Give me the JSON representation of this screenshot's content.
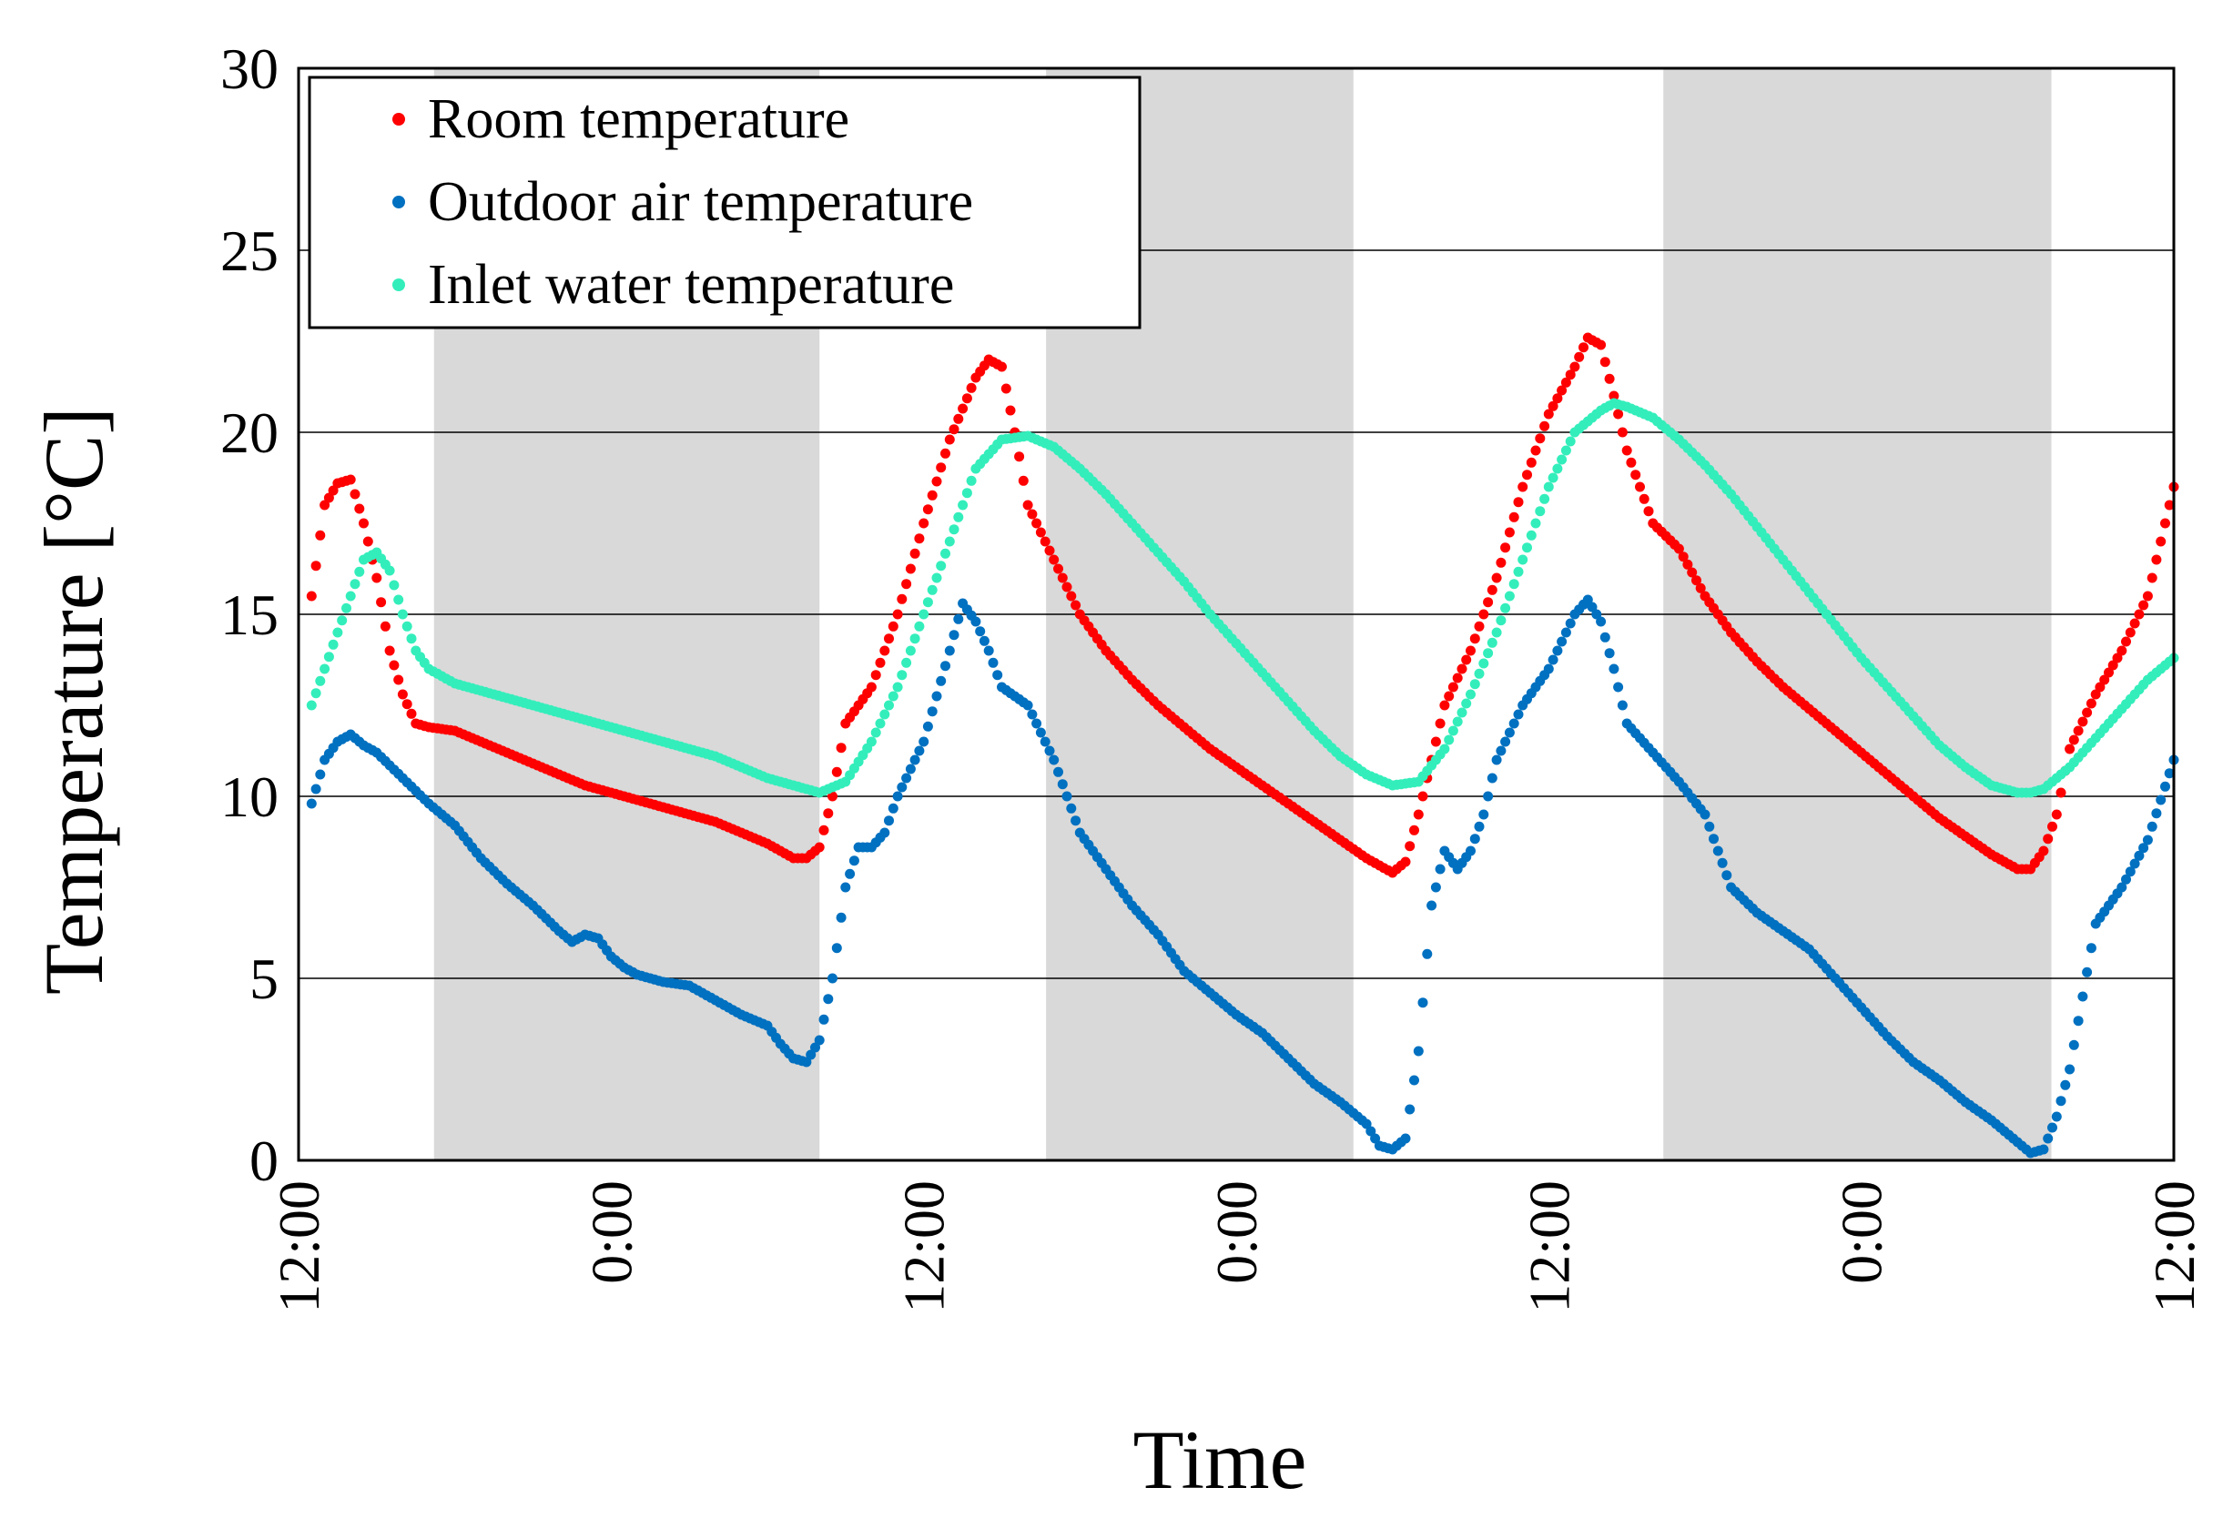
{
  "chart_data": {
    "type": "scatter",
    "title": "",
    "xlabel": "Time",
    "ylabel": "Temperature [°C]",
    "ylim": [
      0,
      30
    ],
    "yticks": [
      0,
      5,
      10,
      15,
      20,
      25,
      30
    ],
    "xlim_hours": [
      12,
      84
    ],
    "xticks": [
      {
        "h": 12,
        "label": "12:00"
      },
      {
        "h": 24,
        "label": "0:00"
      },
      {
        "h": 36,
        "label": "12:00"
      },
      {
        "h": 48,
        "label": "0:00"
      },
      {
        "h": 60,
        "label": "12:00"
      },
      {
        "h": 72,
        "label": "0:00"
      },
      {
        "h": 84,
        "label": "12:00"
      }
    ],
    "gridlines": "horizontal",
    "shaded_night_periods_hours": [
      [
        17.2,
        32
      ],
      [
        40.7,
        52.5
      ],
      [
        64.4,
        79.3
      ]
    ],
    "legend_position": "top-left",
    "series": [
      {
        "name": "Room temperature",
        "color": "#ff0000",
        "points": [
          [
            12.5,
            15.5
          ],
          [
            13,
            18
          ],
          [
            13.5,
            18.6
          ],
          [
            14,
            18.7
          ],
          [
            14.5,
            17.5
          ],
          [
            15,
            16
          ],
          [
            15.5,
            14
          ],
          [
            16,
            12.8
          ],
          [
            16.5,
            12
          ],
          [
            17,
            11.9
          ],
          [
            18,
            11.8
          ],
          [
            19,
            11.5
          ],
          [
            20,
            11.2
          ],
          [
            21,
            10.9
          ],
          [
            22,
            10.6
          ],
          [
            23,
            10.3
          ],
          [
            24,
            10.1
          ],
          [
            25,
            9.9
          ],
          [
            26,
            9.7
          ],
          [
            27,
            9.5
          ],
          [
            28,
            9.3
          ],
          [
            29,
            9.0
          ],
          [
            30,
            8.7
          ],
          [
            31,
            8.3
          ],
          [
            31.5,
            8.3
          ],
          [
            32,
            8.6
          ],
          [
            32.5,
            10
          ],
          [
            33,
            12
          ],
          [
            34,
            13
          ],
          [
            35,
            15
          ],
          [
            36,
            17.5
          ],
          [
            37,
            19.8
          ],
          [
            38,
            21.5
          ],
          [
            38.5,
            22
          ],
          [
            39,
            21.8
          ],
          [
            39.5,
            20
          ],
          [
            40,
            18
          ],
          [
            41,
            16.5
          ],
          [
            42,
            15
          ],
          [
            43,
            14
          ],
          [
            44,
            13.2
          ],
          [
            45,
            12.5
          ],
          [
            46,
            11.9
          ],
          [
            47,
            11.3
          ],
          [
            48,
            10.8
          ],
          [
            49,
            10.3
          ],
          [
            50,
            9.8
          ],
          [
            51,
            9.3
          ],
          [
            52,
            8.8
          ],
          [
            53,
            8.3
          ],
          [
            54,
            7.9
          ],
          [
            54.5,
            8.2
          ],
          [
            55,
            9.5
          ],
          [
            56,
            12.5
          ],
          [
            57,
            14
          ],
          [
            58,
            16
          ],
          [
            59,
            18.5
          ],
          [
            60,
            20.5
          ],
          [
            61,
            21.8
          ],
          [
            61.5,
            22.6
          ],
          [
            62,
            22.4
          ],
          [
            62.5,
            21
          ],
          [
            63,
            19.5
          ],
          [
            64,
            17.5
          ],
          [
            65,
            16.8
          ],
          [
            66,
            15.5
          ],
          [
            67,
            14.5
          ],
          [
            68,
            13.7
          ],
          [
            69,
            13
          ],
          [
            70,
            12.4
          ],
          [
            71,
            11.8
          ],
          [
            72,
            11.2
          ],
          [
            73,
            10.6
          ],
          [
            74,
            10
          ],
          [
            75,
            9.4
          ],
          [
            76,
            8.9
          ],
          [
            77,
            8.4
          ],
          [
            78,
            8
          ],
          [
            78.5,
            8
          ],
          [
            79,
            8.5
          ],
          [
            79.5,
            9.5
          ],
          [
            80,
            11.3
          ],
          [
            81,
            12.8
          ],
          [
            82,
            14
          ],
          [
            83,
            15.5
          ],
          [
            83.5,
            17
          ],
          [
            84,
            18.5
          ]
        ]
      },
      {
        "name": "Outdoor air temperature",
        "color": "#0070c0",
        "points": [
          [
            12.5,
            9.8
          ],
          [
            13,
            11
          ],
          [
            13.5,
            11.5
          ],
          [
            14,
            11.7
          ],
          [
            14.5,
            11.4
          ],
          [
            15,
            11.2
          ],
          [
            16,
            10.5
          ],
          [
            17,
            9.8
          ],
          [
            18,
            9.2
          ],
          [
            19,
            8.3
          ],
          [
            20,
            7.6
          ],
          [
            21,
            7
          ],
          [
            22,
            6.3
          ],
          [
            22.5,
            6
          ],
          [
            23,
            6.2
          ],
          [
            23.5,
            6.1
          ],
          [
            24,
            5.6
          ],
          [
            24.5,
            5.3
          ],
          [
            25,
            5.1
          ],
          [
            26,
            4.9
          ],
          [
            27,
            4.8
          ],
          [
            28,
            4.4
          ],
          [
            29,
            4
          ],
          [
            30,
            3.7
          ],
          [
            30.5,
            3.2
          ],
          [
            31,
            2.8
          ],
          [
            31.5,
            2.7
          ],
          [
            32,
            3.3
          ],
          [
            32.5,
            5
          ],
          [
            33,
            7.5
          ],
          [
            33.5,
            8.6
          ],
          [
            34,
            8.6
          ],
          [
            34.5,
            9
          ],
          [
            35,
            10
          ],
          [
            36,
            11.5
          ],
          [
            37,
            14
          ],
          [
            37.5,
            15.3
          ],
          [
            38,
            14.8
          ],
          [
            38.5,
            14
          ],
          [
            39,
            13
          ],
          [
            40,
            12.5
          ],
          [
            41,
            11
          ],
          [
            42,
            9
          ],
          [
            43,
            8
          ],
          [
            44,
            7
          ],
          [
            45,
            6.2
          ],
          [
            46,
            5.2
          ],
          [
            47,
            4.6
          ],
          [
            48,
            4
          ],
          [
            49,
            3.5
          ],
          [
            50,
            2.8
          ],
          [
            51,
            2.1
          ],
          [
            52,
            1.6
          ],
          [
            53,
            1
          ],
          [
            53.5,
            0.4
          ],
          [
            54,
            0.3
          ],
          [
            54.5,
            0.6
          ],
          [
            55,
            3
          ],
          [
            55.5,
            7
          ],
          [
            56,
            8.5
          ],
          [
            56.5,
            8
          ],
          [
            57,
            8.5
          ],
          [
            57.5,
            9.5
          ],
          [
            58,
            11
          ],
          [
            59,
            12.5
          ],
          [
            60,
            13.5
          ],
          [
            61,
            15
          ],
          [
            61.5,
            15.4
          ],
          [
            62,
            14.8
          ],
          [
            62.5,
            13.5
          ],
          [
            63,
            12
          ],
          [
            64,
            11.2
          ],
          [
            65,
            10.4
          ],
          [
            66,
            9.5
          ],
          [
            67,
            7.5
          ],
          [
            68,
            6.8
          ],
          [
            69,
            6.3
          ],
          [
            70,
            5.8
          ],
          [
            71,
            5
          ],
          [
            72,
            4.2
          ],
          [
            73,
            3.4
          ],
          [
            74,
            2.7
          ],
          [
            75,
            2.2
          ],
          [
            76,
            1.6
          ],
          [
            77,
            1.1
          ],
          [
            78,
            0.5
          ],
          [
            78.5,
            0.2
          ],
          [
            79,
            0.3
          ],
          [
            79.5,
            1.2
          ],
          [
            80,
            2.5
          ],
          [
            80.5,
            4.5
          ],
          [
            81,
            6.5
          ],
          [
            82,
            7.5
          ],
          [
            83,
            8.8
          ],
          [
            84,
            11
          ]
        ]
      },
      {
        "name": "Inlet water temperature",
        "color": "#33eebb",
        "points": [
          [
            12.5,
            12.5
          ],
          [
            13,
            13.5
          ],
          [
            13.5,
            14.5
          ],
          [
            14,
            15.5
          ],
          [
            14.5,
            16.5
          ],
          [
            15,
            16.7
          ],
          [
            15.5,
            16.2
          ],
          [
            16,
            15
          ],
          [
            16.5,
            14
          ],
          [
            17,
            13.5
          ],
          [
            18,
            13.1
          ],
          [
            19,
            12.9
          ],
          [
            20,
            12.7
          ],
          [
            21,
            12.5
          ],
          [
            22,
            12.3
          ],
          [
            23,
            12.1
          ],
          [
            24,
            11.9
          ],
          [
            25,
            11.7
          ],
          [
            26,
            11.5
          ],
          [
            27,
            11.3
          ],
          [
            28,
            11.1
          ],
          [
            29,
            10.8
          ],
          [
            30,
            10.5
          ],
          [
            31,
            10.3
          ],
          [
            32,
            10.1
          ],
          [
            33,
            10.4
          ],
          [
            34,
            11.5
          ],
          [
            35,
            13
          ],
          [
            36,
            15
          ],
          [
            37,
            17
          ],
          [
            38,
            19
          ],
          [
            39,
            19.8
          ],
          [
            40,
            19.9
          ],
          [
            41,
            19.6
          ],
          [
            42,
            19
          ],
          [
            43,
            18.3
          ],
          [
            44,
            17.5
          ],
          [
            45,
            16.7
          ],
          [
            46,
            15.9
          ],
          [
            47,
            15
          ],
          [
            48,
            14.2
          ],
          [
            49,
            13.4
          ],
          [
            50,
            12.6
          ],
          [
            51,
            11.8
          ],
          [
            52,
            11.1
          ],
          [
            53,
            10.6
          ],
          [
            54,
            10.3
          ],
          [
            55,
            10.4
          ],
          [
            56,
            11.3
          ],
          [
            57,
            12.8
          ],
          [
            58,
            14.5
          ],
          [
            59,
            16.5
          ],
          [
            60,
            18.5
          ],
          [
            61,
            20
          ],
          [
            62,
            20.6
          ],
          [
            62.5,
            20.8
          ],
          [
            63,
            20.7
          ],
          [
            64,
            20.4
          ],
          [
            65,
            19.8
          ],
          [
            66,
            19.1
          ],
          [
            67,
            18.3
          ],
          [
            68,
            17.4
          ],
          [
            69,
            16.5
          ],
          [
            70,
            15.6
          ],
          [
            71,
            14.7
          ],
          [
            72,
            13.8
          ],
          [
            73,
            13
          ],
          [
            74,
            12.2
          ],
          [
            75,
            11.4
          ],
          [
            76,
            10.8
          ],
          [
            77,
            10.3
          ],
          [
            78,
            10.1
          ],
          [
            78.5,
            10.1
          ],
          [
            79,
            10.2
          ],
          [
            80,
            10.8
          ],
          [
            81,
            11.6
          ],
          [
            82,
            12.4
          ],
          [
            83,
            13.2
          ],
          [
            84,
            13.8
          ]
        ]
      }
    ]
  }
}
